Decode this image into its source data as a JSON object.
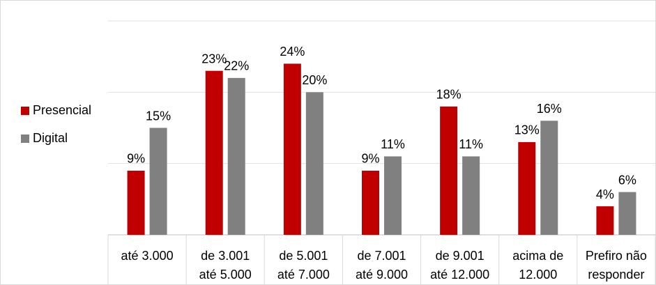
{
  "chart_data": {
    "type": "bar",
    "categories": [
      [
        "até 3.000"
      ],
      [
        "de 3.001",
        "até 5.000"
      ],
      [
        "de 5.001",
        "até 7.000"
      ],
      [
        "de 7.001",
        "até 9.000"
      ],
      [
        "de 9.001",
        "até 12.000"
      ],
      [
        "acima de",
        "12.000"
      ],
      [
        "Prefiro não",
        "responder"
      ]
    ],
    "series": [
      {
        "name": "Presencial",
        "color": "#c00000",
        "values": [
          9,
          23,
          24,
          9,
          18,
          13,
          4
        ],
        "value_labels": [
          "9%",
          "23%",
          "24%",
          "9%",
          "18%",
          "13%",
          "4%"
        ]
      },
      {
        "name": "Digital",
        "color": "#808080",
        "values": [
          15,
          22,
          20,
          11,
          11,
          16,
          6
        ],
        "value_labels": [
          "15%",
          "22%",
          "20%",
          "11%",
          "11%",
          "16%",
          "6%"
        ]
      }
    ],
    "ylim": [
      0,
      30
    ],
    "yticks": [
      0,
      10,
      20,
      30
    ],
    "grid": true,
    "legend": "left"
  }
}
